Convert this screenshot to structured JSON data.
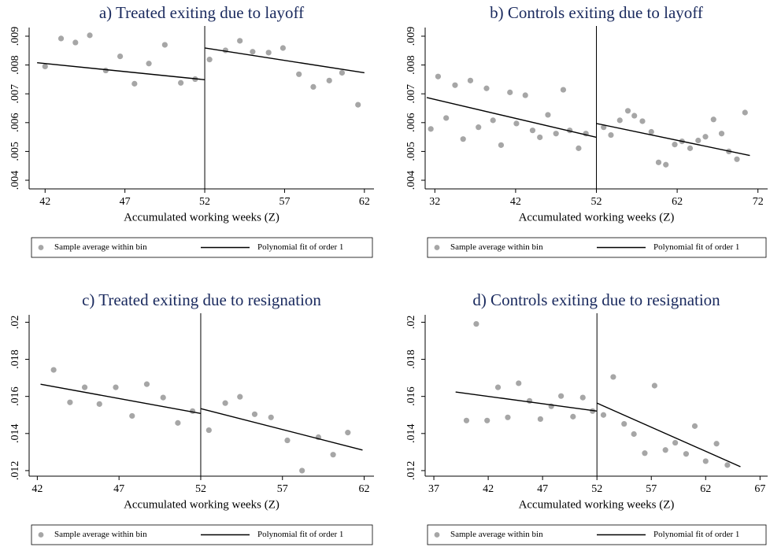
{
  "chart_data": [
    {
      "type": "scatter",
      "title": "a) Treated exiting due to layoff",
      "x_label": "Accumulated working weeks (Z)",
      "xlim": [
        41,
        62.6
      ],
      "xticks": [
        42,
        47,
        52,
        57,
        62
      ],
      "ylim": [
        0.0037,
        0.0093
      ],
      "yticks": [
        {
          "value": 0.004,
          "label": ".004"
        },
        {
          "value": 0.005,
          "label": ".005"
        },
        {
          "value": 0.006,
          "label": ".006"
        },
        {
          "value": 0.007,
          "label": ".007"
        },
        {
          "value": 0.008,
          "label": ".008"
        },
        {
          "value": 0.009,
          "label": ".009"
        }
      ],
      "cutoff": 52,
      "series": [
        {
          "name": "Sample average within bin",
          "color": "#a6a6a6",
          "x": [
            42.0,
            43.0,
            43.9,
            44.8,
            45.8,
            46.7,
            47.6,
            48.5,
            49.5,
            50.5,
            51.4,
            52.3,
            53.3,
            54.2,
            55.0,
            56.0,
            56.9,
            57.9,
            58.8,
            59.8,
            60.6,
            61.6
          ],
          "values": [
            0.00795,
            0.00892,
            0.00878,
            0.00903,
            0.00781,
            0.0083,
            0.00735,
            0.00805,
            0.0087,
            0.00738,
            0.00751,
            0.00819,
            0.00851,
            0.00884,
            0.00846,
            0.00843,
            0.00859,
            0.00768,
            0.00724,
            0.00746,
            0.00773,
            0.00662
          ]
        },
        {
          "name": "Polynomial fit of order 1",
          "type": "line",
          "color": "#000000",
          "x": [
            41.5,
            52,
            null,
            52,
            62
          ],
          "values": [
            0.00808,
            0.00749,
            null,
            0.00859,
            0.00773
          ]
        }
      ]
    },
    {
      "type": "scatter",
      "title": "b) Controls exiting due to layoff",
      "x_label": "Accumulated working weeks (Z)",
      "xlim": [
        30.8,
        73.2
      ],
      "xticks": [
        32,
        42,
        52,
        62,
        72
      ],
      "ylim": [
        0.0037,
        0.0093
      ],
      "yticks": [
        {
          "value": 0.004,
          "label": ".004"
        },
        {
          "value": 0.005,
          "label": ".005"
        },
        {
          "value": 0.006,
          "label": ".006"
        },
        {
          "value": 0.007,
          "label": ".007"
        },
        {
          "value": 0.008,
          "label": ".008"
        },
        {
          "value": 0.009,
          "label": ".009"
        }
      ],
      "cutoff": 52,
      "series": [
        {
          "name": "Sample average within bin",
          "color": "#a6a6a6",
          "x": [
            31.5,
            32.4,
            33.4,
            34.5,
            35.5,
            36.4,
            37.4,
            38.4,
            39.2,
            40.2,
            41.3,
            42.1,
            43.2,
            44.1,
            45.0,
            46.0,
            47.0,
            47.9,
            48.7,
            49.8,
            50.7,
            52.9,
            53.8,
            54.9,
            55.9,
            56.7,
            57.7,
            58.8,
            59.7,
            60.6,
            61.7,
            62.6,
            63.6,
            64.6,
            65.5,
            66.5,
            67.5,
            68.4,
            69.4,
            70.4
          ],
          "values": [
            0.00578,
            0.0076,
            0.00616,
            0.0073,
            0.00543,
            0.00746,
            0.00584,
            0.00719,
            0.00608,
            0.00522,
            0.00705,
            0.00597,
            0.00695,
            0.00573,
            0.00549,
            0.00627,
            0.00562,
            0.00714,
            0.00573,
            0.00511,
            0.00562,
            0.00584,
            0.00557,
            0.00608,
            0.00641,
            0.00624,
            0.00605,
            0.00568,
            0.00462,
            0.00454,
            0.00524,
            0.00535,
            0.00511,
            0.00538,
            0.00551,
            0.00611,
            0.00562,
            0.005,
            0.00473,
            0.00635
          ]
        },
        {
          "name": "Polynomial fit of order 1",
          "type": "line",
          "color": "#000000",
          "x": [
            31,
            52,
            null,
            52,
            71
          ],
          "values": [
            0.00687,
            0.00549,
            null,
            0.00597,
            0.00486
          ]
        }
      ]
    },
    {
      "type": "scatter",
      "title": "c) Treated exiting due to resignation",
      "x_label": "Accumulated working weeks (Z)",
      "xlim": [
        41.5,
        62.6
      ],
      "xticks": [
        42,
        47,
        52,
        57,
        62
      ],
      "ylim": [
        0.0117,
        0.0204
      ],
      "yticks": [
        {
          "value": 0.012,
          "label": ".012"
        },
        {
          "value": 0.014,
          "label": ".014"
        },
        {
          "value": 0.016,
          "label": ".016"
        },
        {
          "value": 0.018,
          "label": ".018"
        },
        {
          "value": 0.02,
          "label": ".02"
        }
      ],
      "cutoff": 52,
      "series": [
        {
          "name": "Sample average within bin",
          "color": "#a6a6a6",
          "x": [
            43.0,
            44.0,
            44.9,
            45.8,
            46.8,
            47.8,
            48.7,
            49.7,
            50.6,
            51.5,
            52.5,
            53.5,
            54.4,
            55.3,
            56.3,
            57.3,
            58.2,
            59.2,
            60.1,
            61.0
          ],
          "values": [
            0.01743,
            0.01568,
            0.01649,
            0.01559,
            0.01649,
            0.01495,
            0.01666,
            0.01594,
            0.01457,
            0.01521,
            0.01418,
            0.01564,
            0.01598,
            0.01504,
            0.01487,
            0.01363,
            0.012,
            0.0138,
            0.01286,
            0.01405
          ]
        },
        {
          "name": "Polynomial fit of order 1",
          "type": "line",
          "color": "#000000",
          "x": [
            42.2,
            52,
            null,
            52,
            61.9
          ],
          "values": [
            0.01666,
            0.01508,
            null,
            0.01534,
            0.01311
          ]
        }
      ]
    },
    {
      "type": "scatter",
      "title": "d) Controls exiting due to resignation",
      "x_label": "Accumulated working weeks (Z)",
      "xlim": [
        36.2,
        67.7
      ],
      "xticks": [
        37,
        42,
        47,
        52,
        57,
        62,
        67
      ],
      "ylim": [
        0.0117,
        0.0204
      ],
      "yticks": [
        {
          "value": 0.012,
          "label": ".012"
        },
        {
          "value": 0.014,
          "label": ".014"
        },
        {
          "value": 0.016,
          "label": ".016"
        },
        {
          "value": 0.018,
          "label": ".018"
        },
        {
          "value": 0.02,
          "label": ".02"
        }
      ],
      "cutoff": 52,
      "series": [
        {
          "name": "Sample average within bin",
          "color": "#a6a6a6",
          "x": [
            40.0,
            40.9,
            41.9,
            42.9,
            43.8,
            44.8,
            45.8,
            46.8,
            47.8,
            48.7,
            49.8,
            50.7,
            51.6,
            52.6,
            53.5,
            54.5,
            55.4,
            56.4,
            57.3,
            58.3,
            59.2,
            60.2,
            61.0,
            62.0,
            63.0,
            64.0
          ],
          "values": [
            0.0147,
            0.01991,
            0.0147,
            0.01649,
            0.01487,
            0.01671,
            0.01576,
            0.01478,
            0.01547,
            0.01602,
            0.01491,
            0.01594,
            0.01521,
            0.015,
            0.01705,
            0.01452,
            0.01397,
            0.01294,
            0.01658,
            0.01311,
            0.0135,
            0.0129,
            0.0144,
            0.01251,
            0.01345,
            0.0123
          ]
        },
        {
          "name": "Polynomial fit of order 1",
          "type": "line",
          "color": "#000000",
          "x": [
            39,
            52,
            null,
            52,
            65.2
          ],
          "values": [
            0.01624,
            0.01521,
            null,
            0.01564,
            0.01221
          ]
        }
      ]
    }
  ]
}
